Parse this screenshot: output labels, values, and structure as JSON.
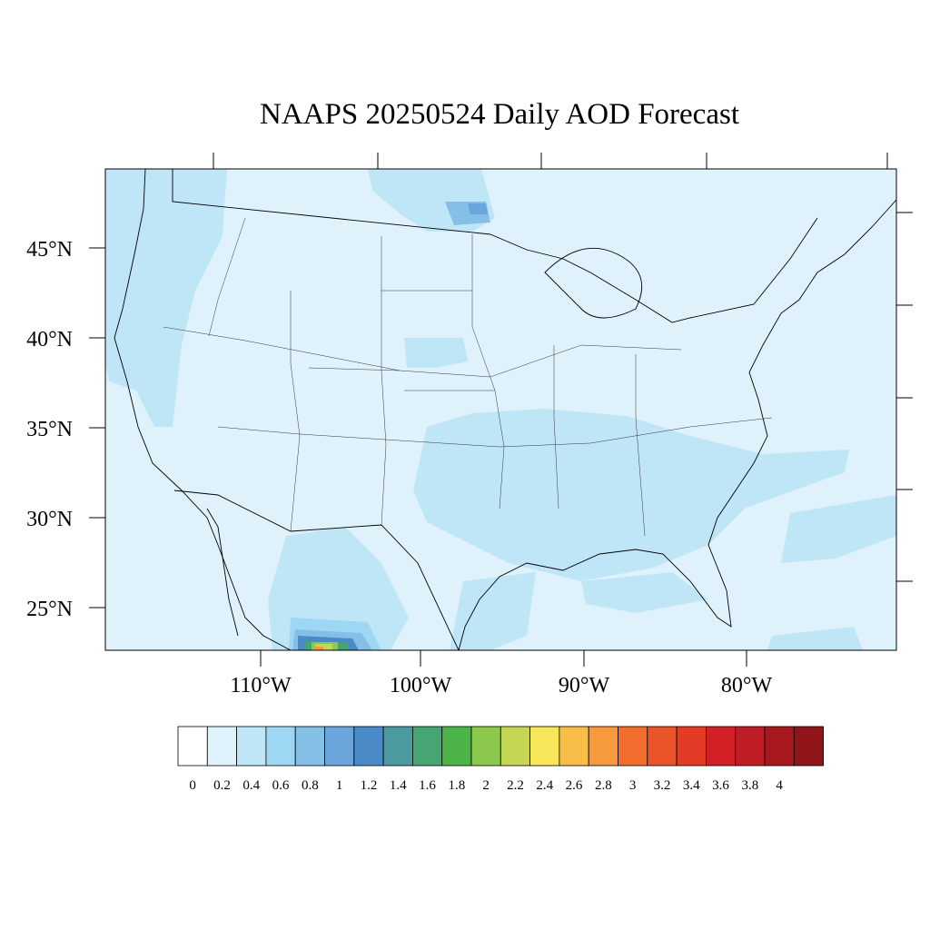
{
  "title": "NAAPS 20250524 Daily AOD Forecast",
  "map": {
    "lat_labels": [
      "45°N",
      "40°N",
      "35°N",
      "30°N",
      "25°N"
    ],
    "lon_labels": [
      "110°W",
      "100°W",
      "90°W",
      "80°W"
    ],
    "background_color": "#dff2fb"
  },
  "colorbar": {
    "labels": [
      "0",
      "0.2",
      "0.4",
      "0.6",
      "0.8",
      "1",
      "1.2",
      "1.4",
      "1.6",
      "1.8",
      "2",
      "2.2",
      "2.4",
      "2.6",
      "2.8",
      "3",
      "3.2",
      "3.4",
      "3.6",
      "3.8",
      "4"
    ],
    "colors": [
      "#ffffff",
      "#dff2fb",
      "#bfe6f7",
      "#9dd7f3",
      "#85bfe6",
      "#6aa6db",
      "#4a8ac7",
      "#4a9aa0",
      "#47a574",
      "#4bb347",
      "#8cc84b",
      "#c5d655",
      "#f7e55a",
      "#f8be48",
      "#f79a3d",
      "#f26d2d",
      "#eb5328",
      "#e33b26",
      "#d32027",
      "#bf1c25",
      "#a9181e",
      "#8f1519"
    ]
  },
  "chart_data": {
    "type": "heatmap",
    "title": "NAAPS 20250524 Daily AOD Forecast",
    "x_ticks": [
      "110°W",
      "100°W",
      "90°W",
      "80°W"
    ],
    "y_ticks": [
      "45°N",
      "40°N",
      "35°N",
      "30°N",
      "25°N"
    ],
    "colorbar_levels": [
      0,
      0.2,
      0.4,
      0.6,
      0.8,
      1,
      1.2,
      1.4,
      1.6,
      1.8,
      2,
      2.2,
      2.4,
      2.6,
      2.8,
      3,
      3.2,
      3.4,
      3.6,
      3.8,
      4
    ]
  }
}
